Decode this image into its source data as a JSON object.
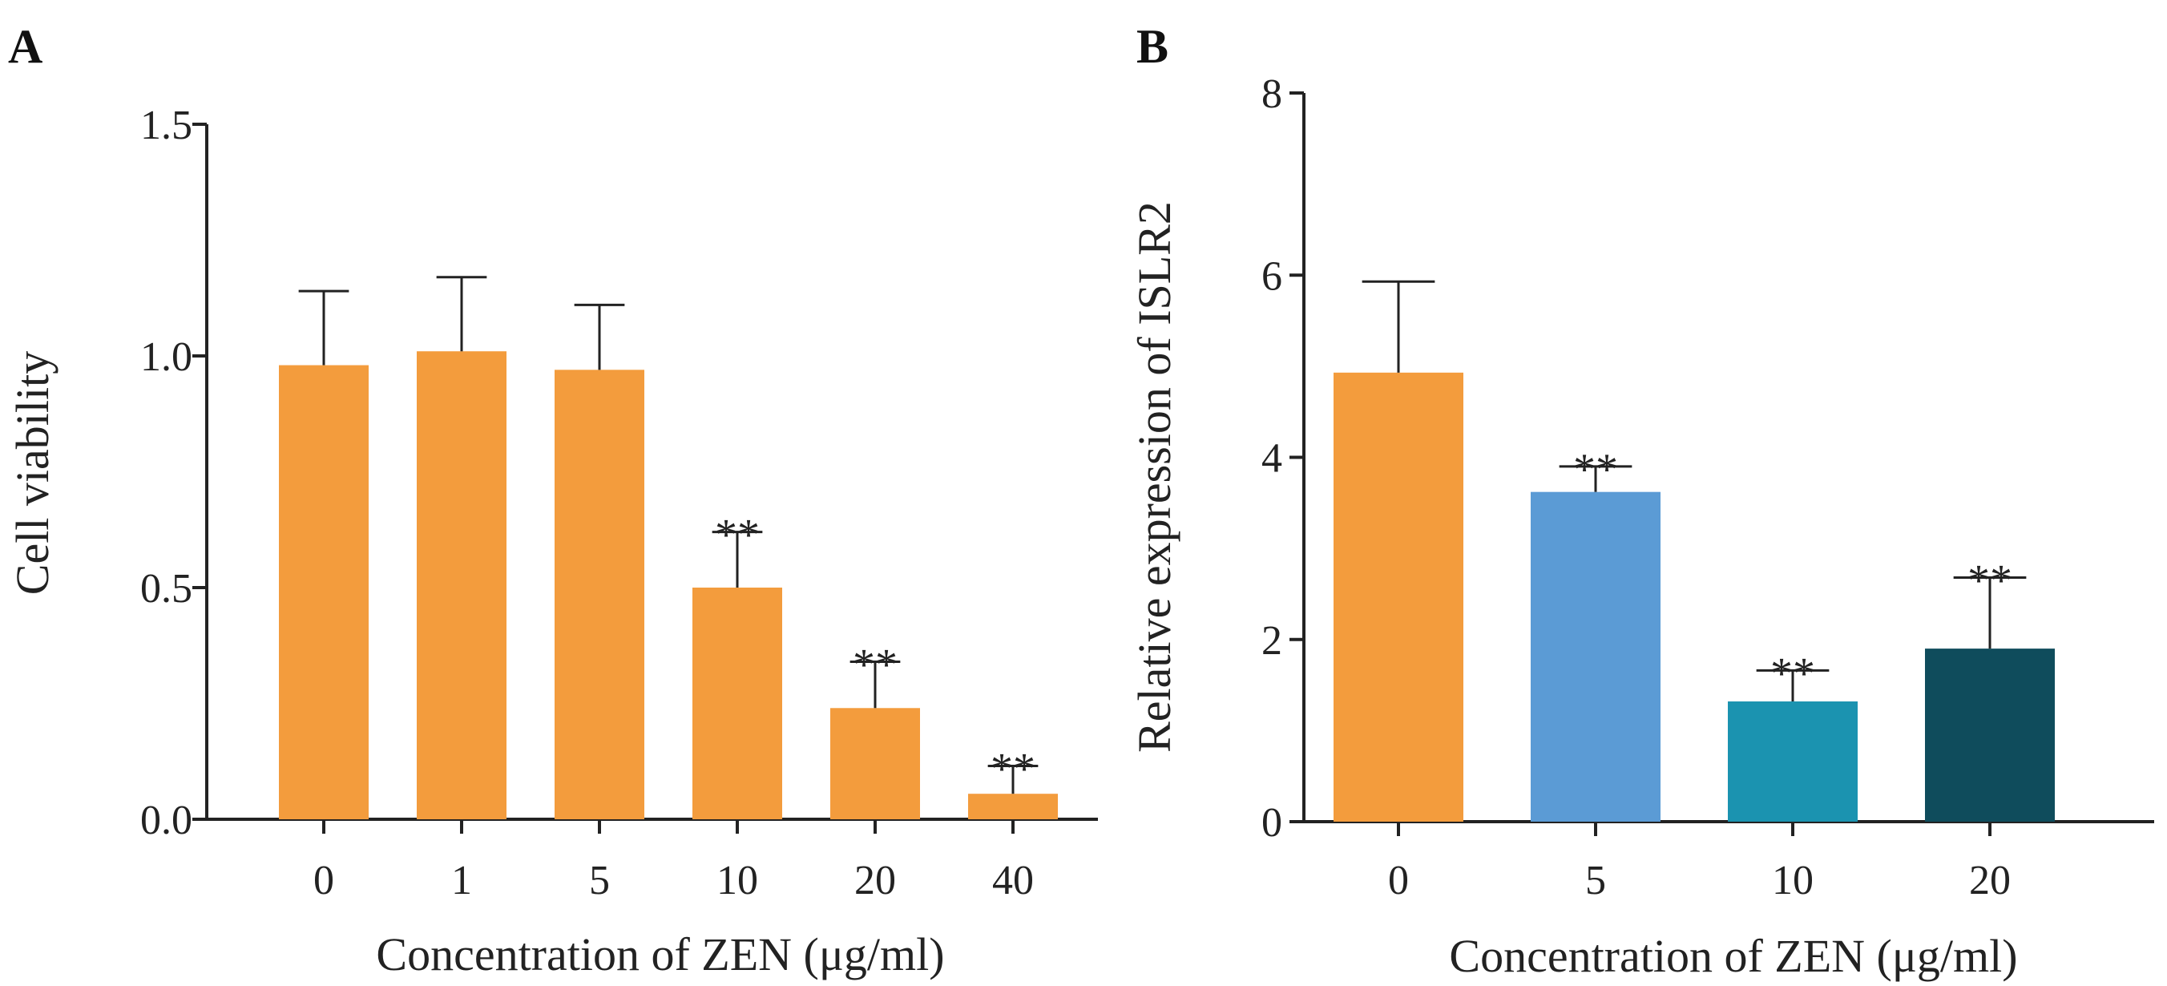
{
  "chart_data": [
    {
      "panel": "A",
      "type": "bar",
      "title": "",
      "xlabel": "Concentration of  ZEN (μg/ml)",
      "ylabel": "Cell viability",
      "ylim": [
        0,
        1.5
      ],
      "yticks": [
        "0.0",
        "0.5",
        "1.0",
        "1.5"
      ],
      "categories": [
        "0",
        "1",
        "5",
        "10",
        "20",
        "40"
      ],
      "values": [
        0.98,
        1.01,
        0.97,
        0.5,
        0.24,
        0.055
      ],
      "errors": [
        0.16,
        0.16,
        0.14,
        0.12,
        0.1,
        0.06
      ],
      "significance": [
        "",
        "",
        "",
        "**",
        "**",
        "**"
      ],
      "colors": [
        "#f39c3d",
        "#f39c3d",
        "#f39c3d",
        "#f39c3d",
        "#f39c3d",
        "#f39c3d"
      ]
    },
    {
      "panel": "B",
      "type": "bar",
      "title": "",
      "xlabel": "Concentration of  ZEN (μg/ml)",
      "ylabel": "Relative expression of ISLR2",
      "ylim": [
        0,
        8
      ],
      "yticks": [
        "0",
        "2",
        "4",
        "6",
        "8"
      ],
      "categories": [
        "0",
        "5",
        "10",
        "20"
      ],
      "values": [
        4.93,
        3.62,
        1.32,
        1.9
      ],
      "errors": [
        1.0,
        0.28,
        0.34,
        0.78
      ],
      "significance": [
        "",
        "**",
        "**",
        "**"
      ],
      "colors": [
        "#f39c3d",
        "#5b9bd5",
        "#1b93b0",
        "#0f4c5c"
      ]
    }
  ]
}
